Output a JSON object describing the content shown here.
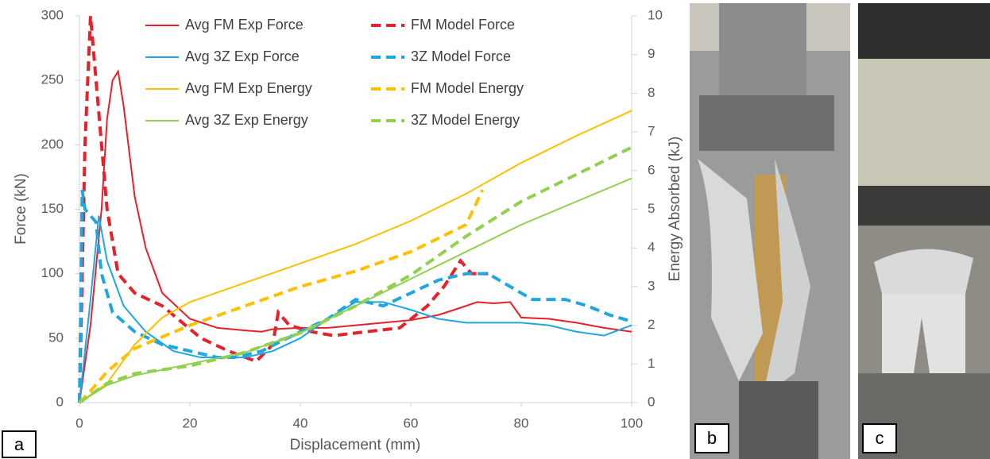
{
  "chart_data": {
    "type": "line",
    "xlabel": "Displacement (mm)",
    "ylabel": "Force (kN)",
    "y2label": "Energy Absorbed (kJ)",
    "xlim": [
      0,
      100
    ],
    "xticks": [
      0,
      20,
      40,
      60,
      80,
      100
    ],
    "ylim": [
      0,
      300
    ],
    "yticks": [
      0,
      50,
      100,
      150,
      200,
      250,
      300
    ],
    "y2lim": [
      0,
      10
    ],
    "y2ticks": [
      0,
      1,
      2,
      3,
      4,
      5,
      6,
      7,
      8,
      9,
      10
    ],
    "grid": false,
    "legend": "top",
    "series": [
      {
        "name": "Avg FM Exp Force",
        "color": "#e8202a",
        "linestyle": "solid",
        "x": [
          0,
          2,
          4,
          5,
          6,
          7,
          8,
          10,
          12,
          15,
          20,
          25,
          30,
          33,
          35,
          40,
          45,
          50,
          55,
          60,
          65,
          70,
          72,
          75,
          78,
          80,
          85,
          90,
          95,
          100
        ],
        "values": [
          0,
          60,
          150,
          220,
          250,
          257,
          230,
          160,
          120,
          85,
          65,
          58,
          56,
          55,
          57,
          58,
          58,
          60,
          62,
          64,
          68,
          75,
          78,
          77,
          78,
          66,
          65,
          62,
          58,
          55
        ]
      },
      {
        "name": "FM Model Force",
        "color": "#e8202a",
        "linestyle": "dashed",
        "x": [
          0,
          1,
          2,
          3,
          5,
          7,
          10,
          15,
          22,
          27,
          32,
          35,
          36,
          38,
          42,
          46,
          52,
          58,
          63,
          66,
          69,
          71,
          74
        ],
        "values": [
          0,
          200,
          300,
          250,
          150,
          100,
          85,
          75,
          50,
          40,
          32,
          45,
          70,
          60,
          55,
          52,
          55,
          58,
          75,
          90,
          110,
          100,
          100
        ]
      },
      {
        "name": "Avg 3Z Exp Force",
        "color": "#1ea7e1",
        "linestyle": "solid",
        "x": [
          0,
          2,
          3.5,
          5,
          8,
          12,
          17,
          22,
          30,
          35,
          40,
          45,
          50,
          55,
          60,
          65,
          70,
          75,
          80,
          85,
          90,
          95,
          100
        ],
        "values": [
          0,
          80,
          145,
          110,
          75,
          55,
          40,
          35,
          35,
          40,
          50,
          65,
          78,
          78,
          72,
          65,
          62,
          62,
          62,
          60,
          55,
          52,
          60
        ]
      },
      {
        "name": "3Z Model Force",
        "color": "#1ea7e1",
        "linestyle": "dashed",
        "x": [
          0,
          0.5,
          1,
          3,
          4,
          6,
          10,
          15,
          20,
          25,
          28,
          33,
          40,
          45,
          50,
          55,
          60,
          65,
          70,
          74,
          78,
          82,
          88,
          92,
          96,
          100
        ],
        "values": [
          0,
          165,
          150,
          140,
          100,
          70,
          55,
          45,
          40,
          35,
          35,
          40,
          55,
          65,
          80,
          75,
          85,
          95,
          100,
          100,
          90,
          80,
          80,
          75,
          68,
          63
        ]
      },
      {
        "name": "Avg FM Exp Energy",
        "color": "#ffc000",
        "linestyle": "solid",
        "axis": "y2",
        "x": [
          0,
          5,
          10,
          15,
          20,
          30,
          40,
          50,
          60,
          70,
          80,
          90,
          100
        ],
        "values": [
          0,
          0.5,
          1.5,
          2.2,
          2.6,
          3.1,
          3.6,
          4.1,
          4.7,
          5.4,
          6.2,
          6.9,
          7.55
        ]
      },
      {
        "name": "FM Model Energy",
        "color": "#ffc000",
        "linestyle": "dashed",
        "axis": "y2",
        "x": [
          0,
          2,
          5,
          10,
          20,
          30,
          40,
          50,
          60,
          70,
          73
        ],
        "values": [
          0,
          0.3,
          0.8,
          1.4,
          2.0,
          2.5,
          3.0,
          3.4,
          3.9,
          4.6,
          5.5
        ]
      },
      {
        "name": "Avg 3Z Exp Energy",
        "color": "#92d050",
        "linestyle": "solid",
        "axis": "y2",
        "x": [
          0,
          5,
          10,
          20,
          30,
          40,
          50,
          60,
          70,
          80,
          90,
          100
        ],
        "values": [
          0,
          0.45,
          0.7,
          1.0,
          1.3,
          1.8,
          2.5,
          3.2,
          3.9,
          4.6,
          5.2,
          5.8
        ]
      },
      {
        "name": "3Z Model Energy",
        "color": "#92d050",
        "linestyle": "dashed",
        "axis": "y2",
        "x": [
          0,
          5,
          10,
          20,
          30,
          40,
          50,
          60,
          70,
          80,
          90,
          100
        ],
        "values": [
          0,
          0.5,
          0.75,
          0.95,
          1.3,
          1.8,
          2.5,
          3.3,
          4.3,
          5.2,
          5.9,
          6.6
        ]
      }
    ]
  },
  "panel_labels": [
    "a",
    "b",
    "c"
  ]
}
